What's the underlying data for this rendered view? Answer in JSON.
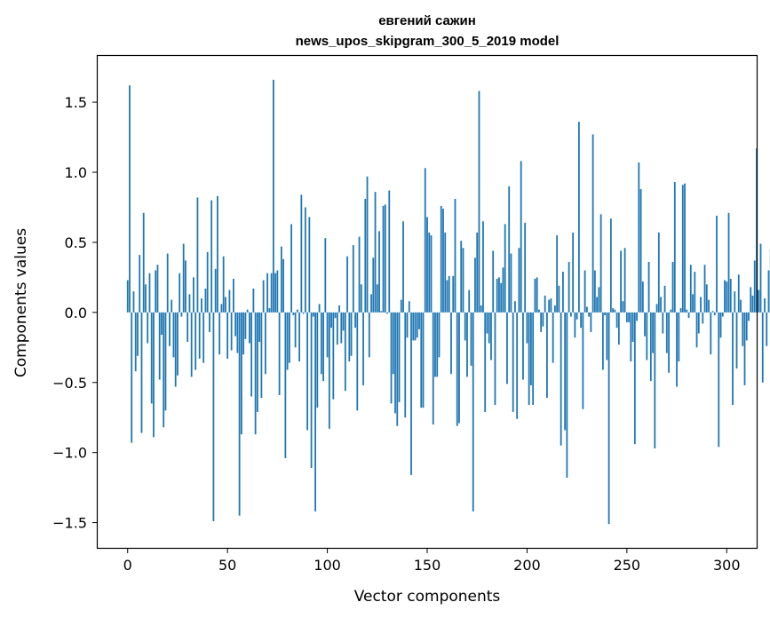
{
  "chart_data": {
    "type": "bar",
    "title": "евгений сажин",
    "subtitle": "news_upos_skipgram_300_5_2019 model",
    "xlabel": "Vector components",
    "ylabel": "Components values",
    "xlim": [
      -15,
      315
    ],
    "ylim": [
      -1.68,
      1.83
    ],
    "x_ticks": [
      0,
      50,
      100,
      150,
      200,
      250,
      300
    ],
    "y_ticks": [
      -1.5,
      -1.0,
      -0.5,
      0.0,
      0.5,
      1.0,
      1.5
    ],
    "y_tick_labels": [
      "−1.5",
      "−1.0",
      "−0.5",
      "0.0",
      "0.5",
      "1.0",
      "1.5"
    ],
    "grid": false,
    "bar_color": "#1f77b4",
    "series": [
      {
        "values": [
          0.23,
          1.62,
          -0.93,
          0.15,
          -0.42,
          -0.31,
          0.41,
          -0.86,
          0.71,
          0.2,
          -0.22,
          0.28,
          -0.65,
          -0.89,
          0.3,
          0.34,
          -0.48,
          -0.16,
          -0.82,
          -0.7,
          0.42,
          -0.24,
          0.09,
          -0.32,
          -0.53,
          -0.45,
          0.28,
          -0.03,
          0.49,
          0.37,
          -0.21,
          0.13,
          -0.46,
          0.25,
          -0.41,
          0.82,
          -0.33,
          0.1,
          -0.36,
          0.17,
          0.43,
          -0.14,
          0.8,
          -1.49,
          0.31,
          0.83,
          -0.3,
          0.06,
          0.4,
          0.11,
          -0.33,
          0.16,
          -0.27,
          0.24,
          -0.17,
          -0.29,
          -1.45,
          -0.87,
          -0.3,
          -0.19,
          0.02,
          -0.22,
          -0.6,
          0.17,
          -0.87,
          -0.71,
          -0.21,
          -0.61,
          0.23,
          -0.44,
          0.28,
          0.03,
          0.28,
          1.66,
          0.28,
          0.3,
          -0.59,
          0.47,
          0.38,
          -1.04,
          -0.41,
          -0.36,
          0.63,
          -0.02,
          -0.25,
          0.02,
          -0.35,
          0.84,
          -0.01,
          0.75,
          -0.84,
          0.68,
          -1.11,
          -0.03,
          -1.42,
          -0.68,
          0.06,
          -0.44,
          -0.49,
          0.53,
          -0.32,
          -0.83,
          -0.11,
          -0.62,
          -0.04,
          -0.23,
          0.05,
          -0.22,
          -0.13,
          -0.56,
          0.4,
          -0.35,
          -0.31,
          0.48,
          -0.11,
          -0.7,
          0.54,
          0.2,
          -0.52,
          0.81,
          0.97,
          -0.32,
          0.13,
          0.39,
          0.86,
          0.2,
          0.58,
          0.01,
          0.76,
          0.77,
          -0.01,
          0.87,
          -0.65,
          -0.44,
          -0.72,
          -0.81,
          -0.64,
          0.09,
          0.65,
          -0.75,
          -0.18,
          0.08,
          -1.16,
          -0.2,
          -0.2,
          -0.18,
          -0.12,
          -0.68,
          -0.68,
          1.03,
          0.68,
          0.57,
          0.55,
          -0.8,
          -0.46,
          -0.46,
          -0.32,
          0.76,
          0.74,
          0.57,
          0.23,
          0.26,
          -0.44,
          0.26,
          0.81,
          -0.81,
          -0.79,
          0.51,
          0.46,
          -0.2,
          -0.46,
          0.16,
          -0.38,
          -1.42,
          0.39,
          0.57,
          1.58,
          0.05,
          0.65,
          -0.71,
          -0.15,
          -0.22,
          -0.34,
          0.44,
          -0.66,
          0.24,
          0.25,
          0.21,
          0.32,
          0.63,
          -0.51,
          0.9,
          0.42,
          -0.71,
          0.08,
          -0.76,
          0.46,
          1.08,
          -0.48,
          0.64,
          -0.22,
          -0.66,
          -0.52,
          -0.66,
          0.24,
          0.25,
          0.02,
          -0.14,
          -0.1,
          0.12,
          -0.61,
          0.09,
          0.1,
          -0.36,
          0.05,
          0.55,
          0.19,
          -0.95,
          0.29,
          -0.84,
          -1.18,
          0.36,
          -0.03,
          0.57,
          -0.18,
          -0.05,
          1.36,
          -0.11,
          -0.69,
          0.3,
          0.04,
          -0.03,
          -0.14,
          1.27,
          0.3,
          0.11,
          0.18,
          0.7,
          -0.41,
          -0.02,
          -0.34,
          -1.51,
          0.67,
          0.03,
          0.02,
          -0.11,
          -0.23,
          0.44,
          0.08,
          0.46,
          -0.07,
          -0.07,
          -0.35,
          -0.21,
          -0.94,
          -0.06,
          1.07,
          0.88,
          0.22,
          -0.17,
          -0.34,
          0.36,
          -0.49,
          -0.29,
          -0.97,
          0.06,
          0.57,
          0.11,
          -0.15,
          0.19,
          -0.29,
          -0.43,
          0.02,
          0.36,
          0.93,
          -0.53,
          -0.35,
          0.03,
          0.91,
          0.92,
          0.02,
          -0.04,
          0.34,
          0.13,
          0.29,
          -0.25,
          -0.15,
          0.11,
          -0.08,
          0.34,
          0.2,
          0.09,
          -0.3,
          0.01,
          -0.02,
          0.69,
          -0.96,
          -0.18,
          -0.03,
          0.23,
          0.22,
          0.71,
          0.24,
          -0.66,
          0.15,
          -0.4,
          0.27,
          0.09,
          -0.24,
          -0.52,
          -0.2,
          -0.06,
          0.18,
          0.12,
          0.37,
          1.17,
          0.16,
          0.49,
          -0.5,
          0.1,
          -0.24,
          0.3,
          0.45
        ]
      }
    ]
  }
}
